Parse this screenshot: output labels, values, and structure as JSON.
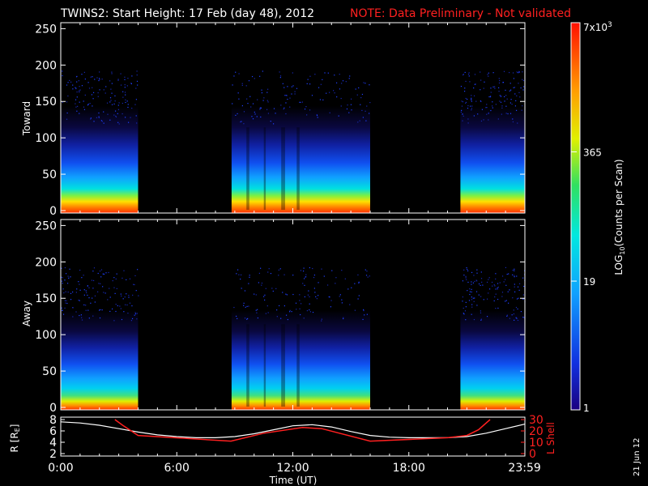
{
  "header": {
    "title": "TWINS2: Start Height: 17 Feb (day  48), 2012",
    "note": "NOTE: Data Preliminary - Not validated"
  },
  "date_stamp": "21 Jun 12",
  "colorbar": {
    "label": "LOG10(Counts per Scan)",
    "label_main": "LOG",
    "label_sub": "10",
    "label_tail": "(Counts per Scan)",
    "ticks": [
      {
        "value": 7000,
        "text": "7x10",
        "exp": "3"
      },
      {
        "value": 365,
        "text": "365"
      },
      {
        "value": 19,
        "text": "19"
      },
      {
        "value": 1,
        "text": "1"
      }
    ],
    "scale": "log",
    "range": [
      1,
      7000
    ]
  },
  "chart_data": [
    {
      "type": "heatmap",
      "ylabel": "Toward",
      "ylim": [
        0,
        256
      ],
      "yticks": [
        "0",
        "50",
        "100",
        "150",
        "200",
        "250"
      ],
      "xlim_hours": [
        0,
        24
      ],
      "data_intervals_ut": [
        [
          "00:00",
          "04:00"
        ],
        [
          "08:50",
          "16:00"
        ],
        [
          "20:40",
          "23:59"
        ]
      ],
      "colormap": "rainbow (dark blue to red)",
      "legend": "none"
    },
    {
      "type": "heatmap",
      "ylabel": "Away",
      "ylim": [
        0,
        256
      ],
      "yticks": [
        "0",
        "50",
        "100",
        "150",
        "200",
        "250"
      ],
      "xlim_hours": [
        0,
        24
      ],
      "data_intervals_ut": [
        [
          "00:00",
          "04:00"
        ],
        [
          "08:50",
          "16:00"
        ],
        [
          "20:40",
          "23:59"
        ]
      ],
      "colormap": "rainbow (dark blue to red)",
      "legend": "none"
    },
    {
      "type": "line",
      "ylabel": "R [RE]",
      "ylabel_main": "R [R",
      "ylabel_sub": "E",
      "ylabel_tail": "]",
      "ylabel2": "L Shell",
      "ylim": [
        2,
        8
      ],
      "ylim2": [
        0,
        30
      ],
      "yticks": [
        "2",
        "4",
        "6",
        "8"
      ],
      "yticks2": [
        "0",
        "10",
        "20",
        "30"
      ],
      "xlabel": "Time (UT)",
      "xticks": [
        "0:00",
        "6:00",
        "12:00",
        "18:00",
        "23:59"
      ],
      "series": [
        {
          "color": "#ffffff",
          "x": [
            0,
            1,
            2,
            3,
            4,
            5,
            6,
            7,
            8,
            9,
            10,
            11,
            12,
            13,
            14,
            15,
            16,
            17,
            18,
            19,
            20,
            21,
            22,
            23,
            24
          ],
          "y": [
            7.6,
            7.4,
            7.0,
            6.4,
            5.8,
            5.3,
            5.0,
            4.8,
            4.8,
            5.0,
            5.5,
            6.2,
            6.9,
            7.1,
            6.7,
            5.9,
            5.2,
            4.9,
            4.8,
            4.8,
            4.8,
            5.0,
            5.6,
            6.4,
            7.2
          ]
        },
        {
          "color": "#ff2020",
          "axis": "right",
          "x": [
            2.8,
            3.2,
            4.0,
            8.8,
            10.5,
            12.5,
            13.5,
            16.0,
            20.0,
            21.0,
            21.6,
            22.2
          ],
          "y": [
            30,
            25,
            16,
            11,
            18,
            23,
            22,
            11,
            14,
            16,
            21,
            30
          ]
        }
      ]
    }
  ]
}
